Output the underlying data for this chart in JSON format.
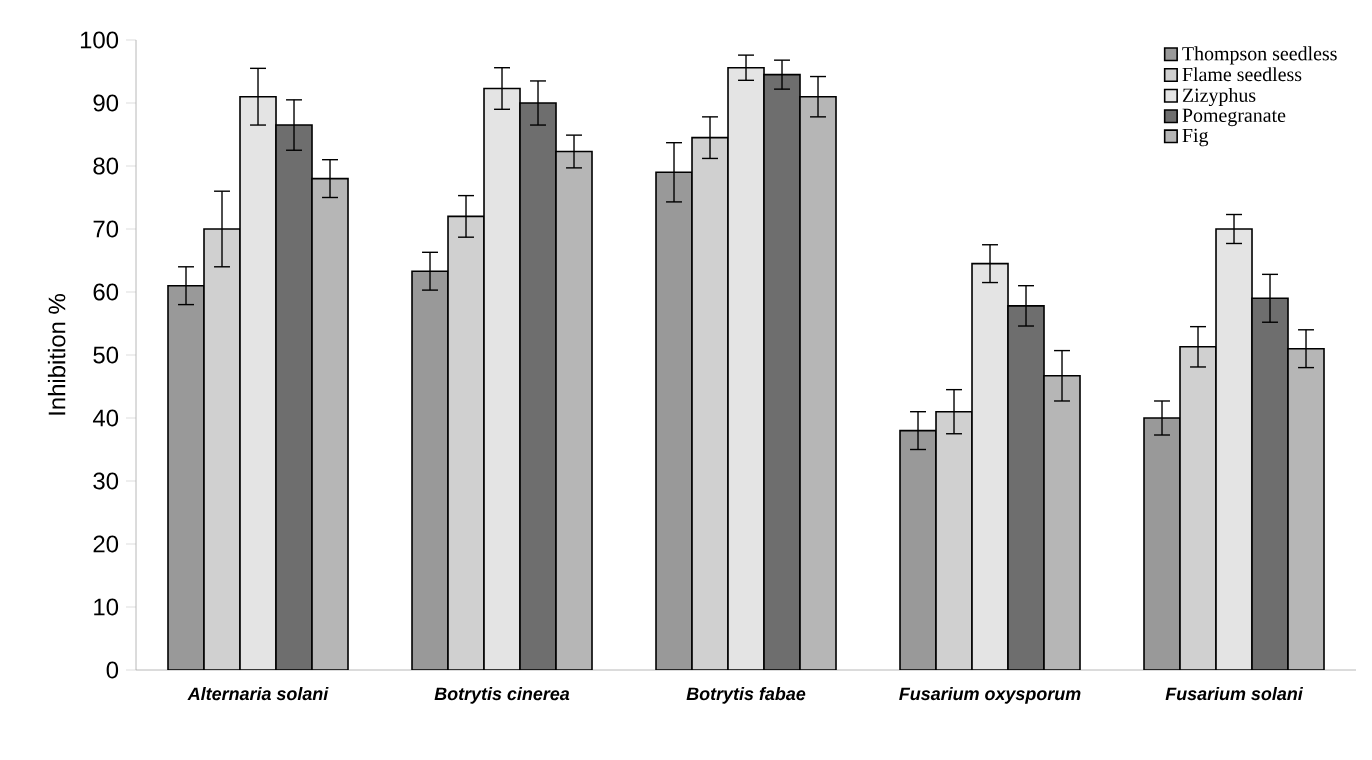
{
  "chart_data": {
    "type": "bar",
    "ylabel": "Inhibition %",
    "categories": [
      "Alternaria solani",
      "Botrytis cinerea",
      "Botrytis fabae",
      "Fusarium oxysporum",
      "Fusarium solani"
    ],
    "series": [
      {
        "name": "Thompson seedless",
        "color": "#999999",
        "values": [
          61,
          63.3,
          79,
          38,
          40
        ],
        "errors": [
          3,
          3,
          4.7,
          3,
          2.7
        ]
      },
      {
        "name": "Flame seedless",
        "color": "#d0d0d0",
        "values": [
          70,
          72,
          84.5,
          41,
          51.3
        ],
        "errors": [
          6,
          3.3,
          3.3,
          3.5,
          3.2
        ]
      },
      {
        "name": "Zizyphus",
        "color": "#e4e4e4",
        "values": [
          91,
          92.3,
          95.6,
          64.5,
          70
        ],
        "errors": [
          4.5,
          3.3,
          2,
          3,
          2.3
        ]
      },
      {
        "name": "Pomegranate",
        "color": "#6e6e6e",
        "values": [
          86.5,
          90,
          94.5,
          57.8,
          59
        ],
        "errors": [
          4,
          3.5,
          2.3,
          3.2,
          3.8
        ]
      },
      {
        "name": "Fig",
        "color": "#b6b6b6",
        "values": [
          78,
          82.3,
          91,
          46.7,
          51
        ],
        "errors": [
          3,
          2.6,
          3.2,
          4,
          3
        ]
      }
    ],
    "ylim": [
      0,
      100
    ],
    "yticks": [
      0,
      10,
      20,
      30,
      40,
      50,
      60,
      70,
      80,
      90,
      100
    ],
    "grid": false,
    "legend": "top right"
  }
}
